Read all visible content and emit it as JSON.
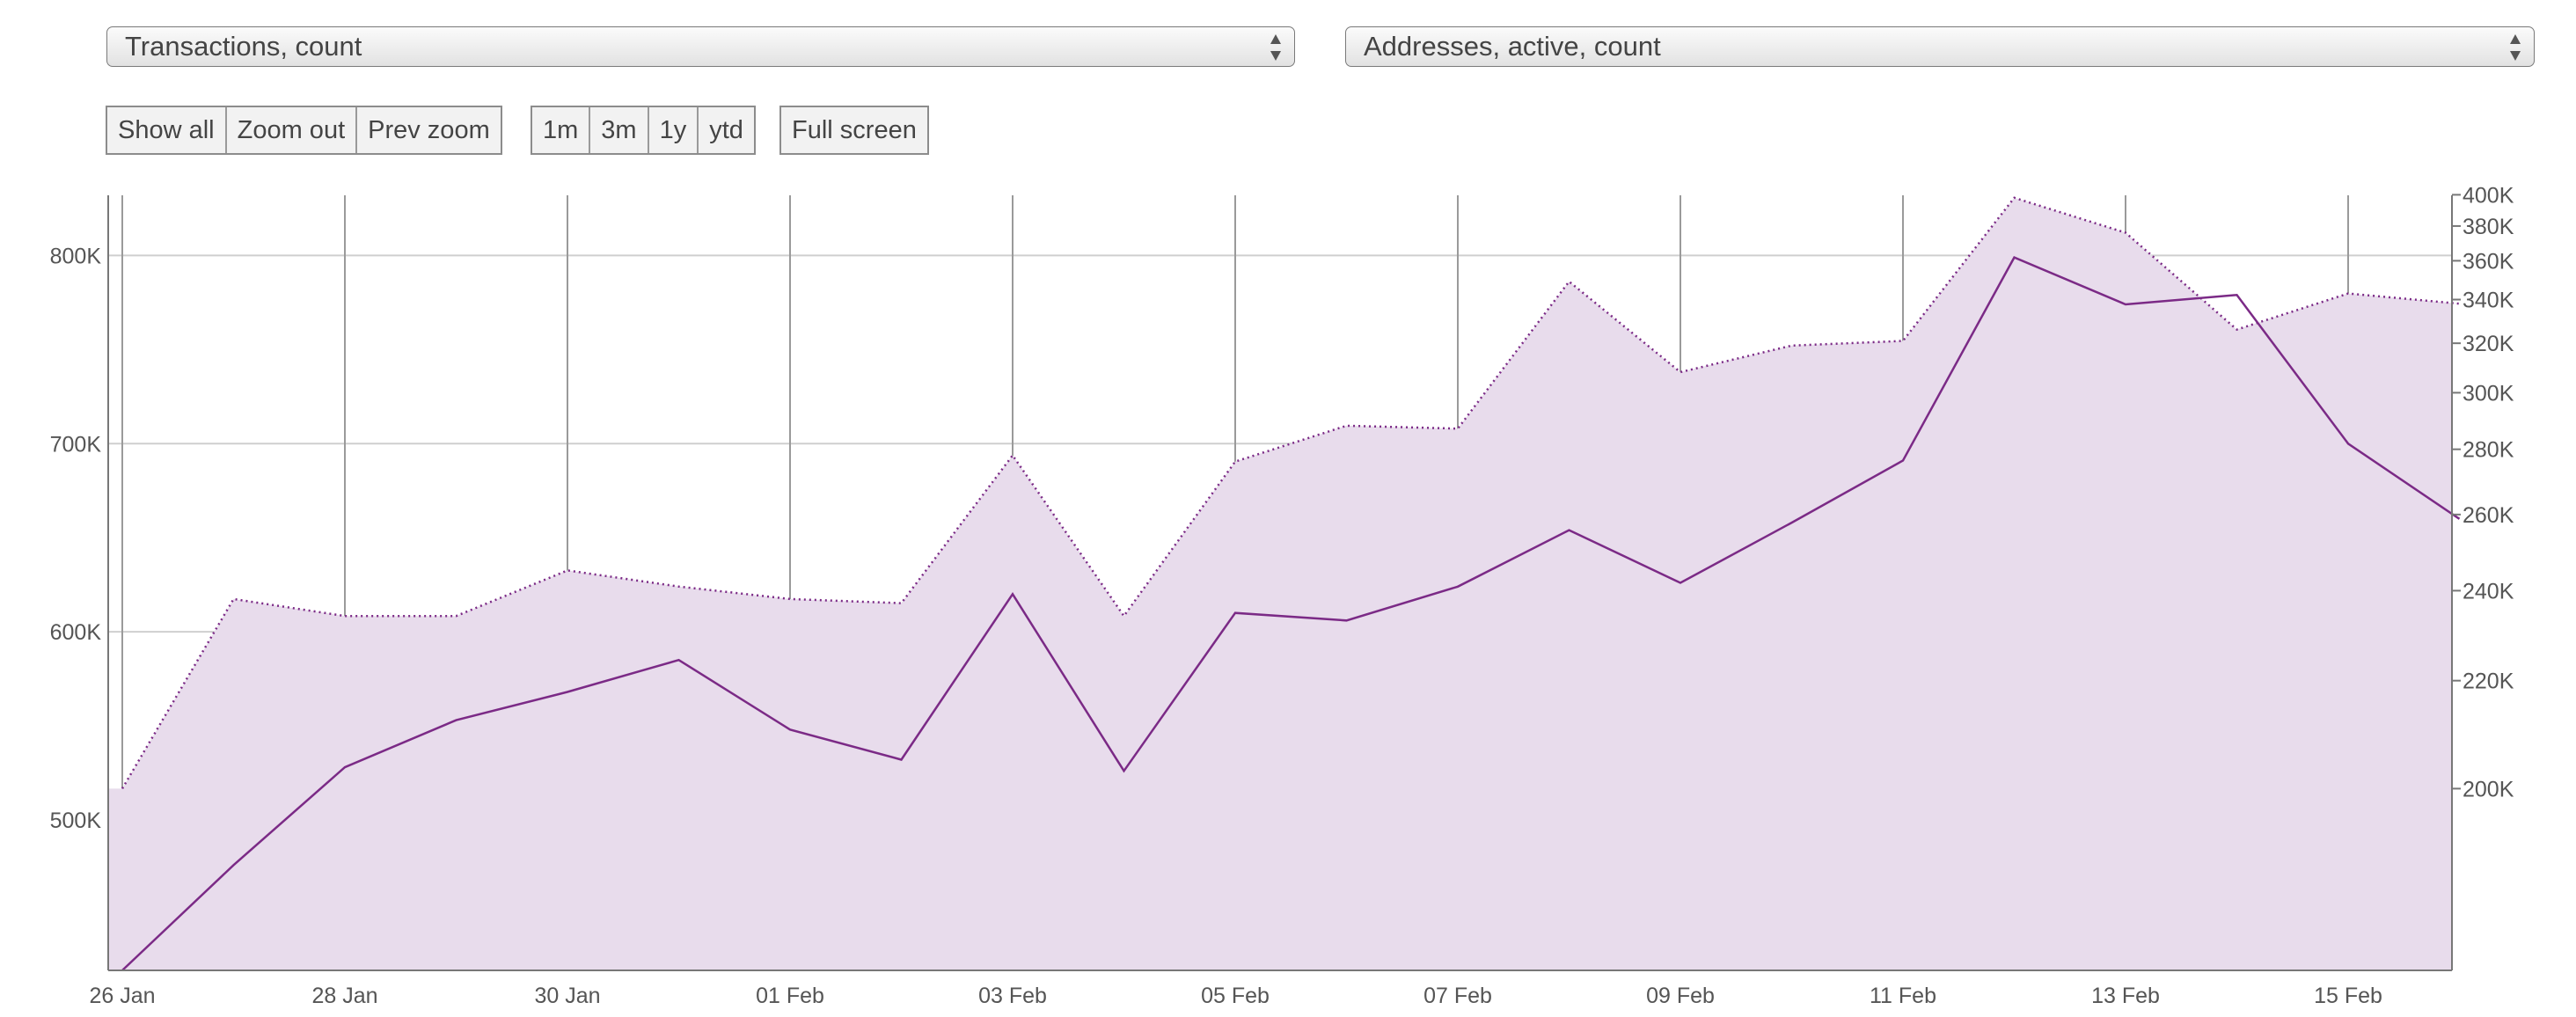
{
  "controls": {
    "left_select": "Transactions, count",
    "right_select": "Addresses, active, count",
    "zoom_buttons": [
      "Show all",
      "Zoom out",
      "Prev zoom"
    ],
    "range_buttons": [
      "1m",
      "3m",
      "1y",
      "ytd"
    ],
    "fullscreen_button": "Full screen"
  },
  "colors": {
    "line": "#7b2a86",
    "area_fill": "#e8dcec",
    "grid": "#cfcfcf",
    "vgrid": "#9a9a9a"
  },
  "chart_data": {
    "type": "line",
    "x": [
      "26 Jan",
      "27 Jan",
      "28 Jan",
      "29 Jan",
      "30 Jan",
      "31 Jan",
      "01 Feb",
      "02 Feb",
      "03 Feb",
      "04 Feb",
      "05 Feb",
      "06 Feb",
      "07 Feb",
      "08 Feb",
      "09 Feb",
      "10 Feb",
      "11 Feb",
      "12 Feb",
      "13 Feb",
      "14 Feb",
      "15 Feb",
      "16 Feb"
    ],
    "x_tick_labels": [
      "26 Jan",
      "28 Jan",
      "30 Jan",
      "01 Feb",
      "03 Feb",
      "05 Feb",
      "07 Feb",
      "09 Feb",
      "11 Feb",
      "13 Feb",
      "15 Feb"
    ],
    "series": [
      {
        "style": "solid line",
        "axis": "left",
        "values": [
          420000,
          476000,
          528000,
          553000,
          568000,
          585000,
          548000,
          532000,
          620000,
          526000,
          610000,
          606000,
          624000,
          654000,
          626000,
          658000,
          691000,
          799000,
          774000,
          779000,
          700000,
          660000
        ]
      },
      {
        "style": "dotted line with filled area",
        "axis": "right",
        "values": [
          200000,
          238000,
          234000,
          234000,
          245000,
          241000,
          238000,
          237000,
          278000,
          234000,
          276000,
          288000,
          287000,
          349000,
          308000,
          319000,
          321000,
          398000,
          376000,
          326000,
          343000,
          338000
        ]
      }
    ],
    "y_left": {
      "ticks": [
        500000,
        600000,
        700000,
        800000
      ],
      "tick_labels": [
        "500K",
        "600K",
        "700K",
        "800K"
      ],
      "lim": [
        420000,
        832000
      ]
    },
    "y_right": {
      "ticks": [
        200000,
        220000,
        240000,
        260000,
        280000,
        300000,
        320000,
        340000,
        360000,
        380000,
        400000
      ],
      "tick_labels": [
        "200K",
        "220K",
        "240K",
        "260K",
        "280K",
        "300K",
        "320K",
        "340K",
        "360K",
        "380K",
        "400K"
      ]
    },
    "grid": true,
    "legend": "none"
  }
}
